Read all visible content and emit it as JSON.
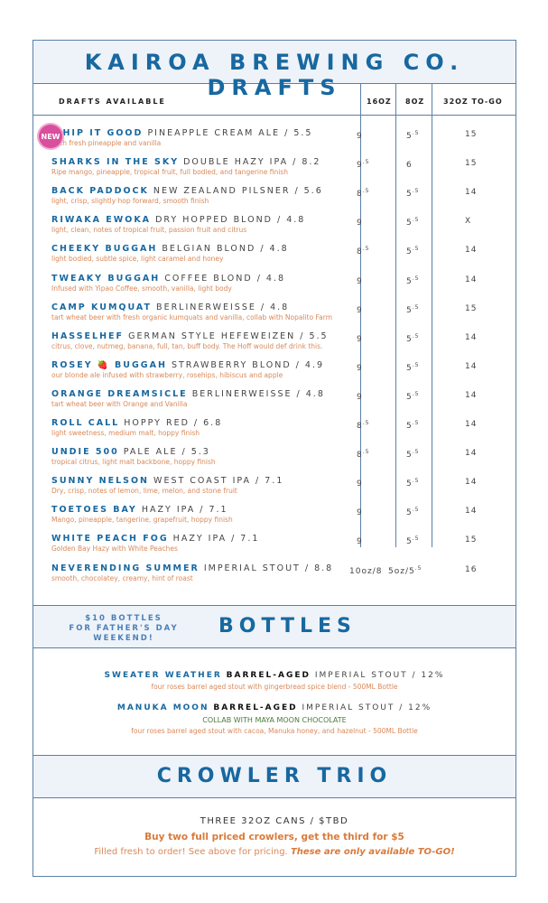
{
  "title": "KAIROA BREWING CO. DRAFTS",
  "table_headers": {
    "name": "DRAFTS AVAILABLE",
    "c1": "16OZ",
    "c2": "8OZ",
    "c3": "32OZ TO-GO"
  },
  "new_badge": "NEW",
  "drafts": [
    {
      "name": "WHIP IT GOOD",
      "style": "PINEAPPLE CREAM ALE / 5.5",
      "desc": "With fresh pineapple and vanilla",
      "p16": "9",
      "p16s": "",
      "p8": "5",
      "p8s": ".5",
      "p32": "15",
      "isNew": true
    },
    {
      "name": "SHARKS IN THE SKY",
      "style": "DOUBLE HAZY IPA / 8.2",
      "desc": "Ripe mango, pineapple, tropical fruit, full bodied, and tangerine finish",
      "p16": "9",
      "p16s": ".5",
      "p8": "6",
      "p8s": "",
      "p32": "15"
    },
    {
      "name": "BACK PADDOCK",
      "style": "NEW ZEALAND PILSNER / 5.6",
      "desc": "light, crisp, slightly hop forward, smooth finish",
      "p16": "8",
      "p16s": ".5",
      "p8": "5",
      "p8s": ".5",
      "p32": "14"
    },
    {
      "name": "RIWAKA EWOKA",
      "style": "DRY HOPPED BLOND / 4.8",
      "desc": "light, clean, notes of tropical fruit, passion fruit and citrus",
      "p16": "9",
      "p16s": "",
      "p8": "5",
      "p8s": ".5",
      "p32": "X"
    },
    {
      "name": "CHEEKY BUGGAH",
      "style": "BELGIAN BLOND / 4.8",
      "desc": "light bodied, subtle spice, light caramel and honey",
      "p16": "8",
      "p16s": ".5",
      "p8": "5",
      "p8s": ".5",
      "p32": "14"
    },
    {
      "name": "TWEAKY BUGGAH",
      "style": "COFFEE BLOND / 4.8",
      "desc": "Infused with Yipao Coffee, smooth, vanilla, light body",
      "p16": "9",
      "p16s": "",
      "p8": "5",
      "p8s": ".5",
      "p32": "14"
    },
    {
      "name": "CAMP KUMQUAT",
      "style": "BERLINERWEISSE / 4.8",
      "desc": "tart wheat beer with fresh organic kumquats and vanilla, collab with Nopalito Farm",
      "p16": "9",
      "p16s": "",
      "p8": "5",
      "p8s": ".5",
      "p32": "15"
    },
    {
      "name": "HASSELHEF",
      "style": "GERMAN STYLE HEFEWEIZEN / 5.5",
      "desc": "citrus, clove, nutmeg, banana, full, tan, buff body. The Hoff would def drink this.",
      "p16": "9",
      "p16s": "",
      "p8": "5",
      "p8s": ".5",
      "p32": "14"
    },
    {
      "name": "ROSEY 🍓 BUGGAH",
      "style": "STRAWBERRY BLOND / 4.9",
      "desc": "our blonde ale infused with strawberry, rosehips, hibiscus and apple",
      "p16": "9",
      "p16s": "",
      "p8": "5",
      "p8s": ".5",
      "p32": "14"
    },
    {
      "name": "ORANGE DREAMSICLE",
      "style": "BERLINERWEISSE / 4.8",
      "desc": "tart wheat beer with Orange and Vanilla",
      "p16": "9",
      "p16s": "",
      "p8": "5",
      "p8s": ".5",
      "p32": "14"
    },
    {
      "name": "ROLL CALL",
      "style": "HOPPY RED / 6.8",
      "desc": "light sweetness, medium malt, hoppy finish",
      "p16": "8",
      "p16s": ".5",
      "p8": "5",
      "p8s": ".5",
      "p32": "14"
    },
    {
      "name": "UNDIE 500",
      "style": "PALE ALE / 5.3",
      "desc": "tropical citrus, light malt backbone, hoppy finish",
      "p16": "8",
      "p16s": ".5",
      "p8": "5",
      "p8s": ".5",
      "p32": "14"
    },
    {
      "name": "SUNNY NELSON",
      "style": "WEST COAST IPA / 7.1",
      "desc": "Dry, crisp, notes of lemon, lime, melon, and stone fruit",
      "p16": "9",
      "p16s": "",
      "p8": "5",
      "p8s": ".5",
      "p32": "14"
    },
    {
      "name": "TOETOES BAY",
      "style": "HAZY IPA / 7.1",
      "desc": "Mango, pineapple, tangerine, grapefruit, hoppy finish",
      "p16": "9",
      "p16s": "",
      "p8": "5",
      "p8s": ".5",
      "p32": "14"
    },
    {
      "name": "WHITE PEACH FOG",
      "style": "HAZY IPA / 7.1",
      "desc": "Golden Bay Hazy with White Peaches",
      "p16": "9",
      "p16s": "",
      "p8": "5",
      "p8s": ".5",
      "p32": "15"
    },
    {
      "name": "NEVERENDING SUMMER",
      "style": "IMPERIAL STOUT / 8.8",
      "desc": "smooth, chocolatey, creamy, hint of roast",
      "p16": "10oz/8",
      "p16s": "",
      "p8": "5oz/5",
      "p8s": ".5",
      "p32": "16"
    }
  ],
  "bottles": {
    "promo": [
      "$10 BOTTLES",
      "FOR FATHER'S DAY",
      "WEEKEND!"
    ],
    "title": "BOTTLES",
    "items": [
      {
        "name": "SWEATER WEATHER",
        "tag": "BARREL-AGED",
        "style": "IMPERIAL STOUT / 12%",
        "collab": "",
        "desc": "four roses barrel aged stout with gingerbread spice blend - 500ML Bottle"
      },
      {
        "name": "MANUKA MOON",
        "tag": "BARREL-AGED",
        "style": "IMPERIAL STOUT / 12%",
        "collab": "COLLAB WITH MAYA MOON CHOCOLATE",
        "desc": "four roses barrel aged stout with cacoa, Manuka honey, and hazelnut - 500ML Bottle"
      }
    ]
  },
  "crowler": {
    "title": "CROWLER TRIO",
    "line1": "THREE 32OZ CANS / $TBD",
    "line2": "Buy two full priced crowlers, get the third for $5",
    "line3a": "Filled fresh to order! See above for pricing.",
    "line3b": "These are only available TO-GO!"
  },
  "colors": {
    "brand_blue": "#1868a0",
    "desc_orange": "#d9895a",
    "band": "#eef3f9",
    "new_pink": "#d94f9d",
    "collab_green": "#4a7a3a"
  }
}
